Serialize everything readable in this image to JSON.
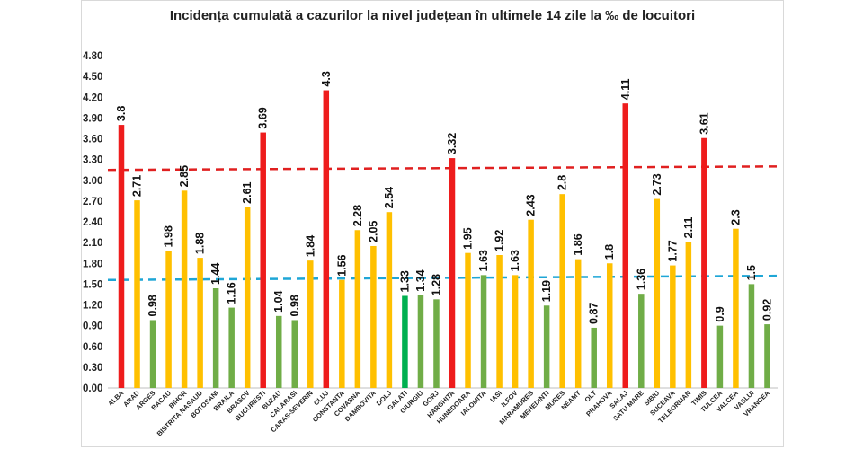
{
  "chart_data": {
    "type": "bar",
    "title": "Incidența cumulată a cazurilor la nivel județean în ultimele 14 zile la ‰ de locuitori",
    "xlabel": "",
    "ylabel": "",
    "ylim": [
      0,
      4.8
    ],
    "yticks": [
      "0.00",
      "0.30",
      "0.60",
      "0.90",
      "1.20",
      "1.50",
      "1.80",
      "2.10",
      "2.40",
      "2.70",
      "3.00",
      "3.30",
      "3.60",
      "3.90",
      "4.20",
      "4.50",
      "4.80"
    ],
    "grid": false,
    "legend": "none",
    "categories": [
      "ALBA",
      "ARAD",
      "ARGES",
      "BACAU",
      "BIHOR",
      "BISTRITA NASAUD",
      "BOTOSANI",
      "BRAILA",
      "BRASOV",
      "BUCURESTI",
      "BUZAU",
      "CALARASI",
      "CARAS-SEVERIN",
      "CLUJ",
      "CONSTANTA",
      "COVASNA",
      "DAMBOVITA",
      "DOLJ",
      "GALATI",
      "GIURGIU",
      "GORJ",
      "HARGHITA",
      "HUNEDOARA",
      "IALOMITA",
      "IASI",
      "ILFOV",
      "MARAMURES",
      "MEHEDINTI",
      "MURES",
      "NEAMT",
      "OLT",
      "PRAHOVA",
      "SALAJ",
      "SATU MARE",
      "SIBIU",
      "SUCEAVA",
      "TELEORMAN",
      "TIMIS",
      "TULCEA",
      "VALCEA",
      "VASLUI",
      "VRANCEA"
    ],
    "values": [
      3.8,
      2.71,
      0.98,
      1.98,
      2.85,
      1.88,
      1.44,
      1.16,
      2.61,
      3.69,
      1.04,
      0.98,
      1.84,
      4.3,
      1.56,
      2.28,
      2.05,
      2.54,
      1.33,
      1.34,
      1.28,
      3.32,
      1.95,
      1.63,
      1.92,
      1.63,
      2.43,
      1.19,
      2.8,
      1.86,
      0.87,
      1.8,
      4.11,
      1.36,
      2.73,
      1.77,
      2.11,
      3.61,
      0.9,
      2.3,
      1.5,
      0.92
    ],
    "data_labels": [
      "3.8",
      "2.71",
      "0.98",
      "1.98",
      "2.85",
      "1.88",
      "1.44",
      "1.16",
      "2.61",
      "3.69",
      "1.04",
      "0.98",
      "1.84",
      "4.3",
      "1.56",
      "2.28",
      "2.05",
      "2.54",
      "1.33",
      "1.34",
      "1.28",
      "3.32",
      "1.95",
      "1.63",
      "1.92",
      "1.63",
      "2.43",
      "1.19",
      "2.8",
      "1.86",
      "0.87",
      "1.8",
      "4.11",
      "1.36",
      "2.73",
      "1.77",
      "2.11",
      "3.61",
      "0.9",
      "2.3",
      "1.5",
      "0.92"
    ],
    "colors": {
      "red": "#ee1c1c",
      "yellow": "#ffc000",
      "green": "#70ad47",
      "highlight_green": "#00b050",
      "threshold_red": "#e02020",
      "threshold_blue": "#1fa6d6"
    },
    "bar_colors": [
      "red",
      "yellow",
      "green",
      "yellow",
      "yellow",
      "yellow",
      "green",
      "green",
      "yellow",
      "red",
      "green",
      "green",
      "yellow",
      "red",
      "yellow",
      "yellow",
      "yellow",
      "yellow",
      "highlight_green",
      "green",
      "green",
      "red",
      "yellow",
      "green",
      "yellow",
      "yellow",
      "yellow",
      "green",
      "yellow",
      "yellow",
      "green",
      "yellow",
      "red",
      "green",
      "yellow",
      "yellow",
      "yellow",
      "red",
      "green",
      "yellow",
      "green",
      "green"
    ],
    "threshold_lines": [
      {
        "color": "threshold_red",
        "y_start": 3.15,
        "y_end": 3.2
      },
      {
        "color": "threshold_blue",
        "y_start": 1.56,
        "y_end": 1.62
      }
    ]
  }
}
